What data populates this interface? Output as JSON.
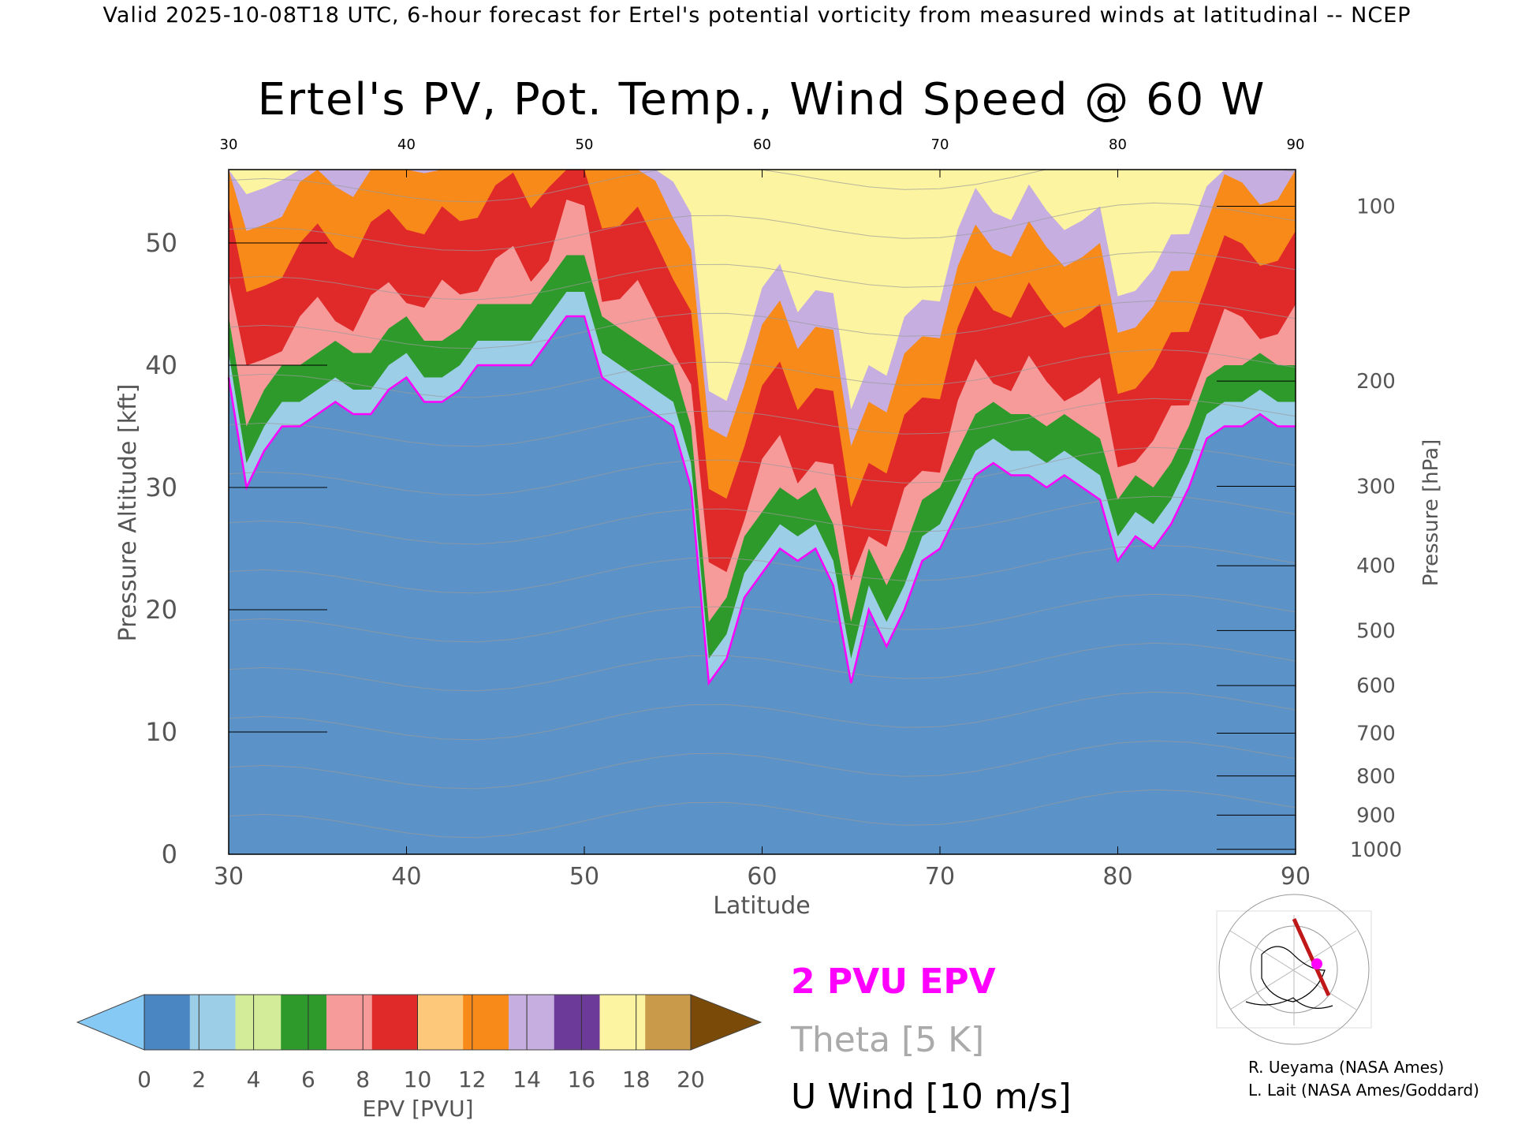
{
  "header_text": "Valid 2025-10-08T18 UTC, 6-hour forecast for Ertel's potential vorticity from measured winds at latitudinal -- NCEP",
  "chart_data": {
    "type": "heatmap",
    "title": "Ertel's PV, Pot. Temp., Wind Speed @ 60 W",
    "xlabel": "Latitude",
    "ylabel": "Pressure Altitude [kft]",
    "y2label": "Pressure [hPa]",
    "xlim": [
      30,
      90
    ],
    "ylim": [
      0,
      56
    ],
    "x_ticks": [
      "30",
      "40",
      "50",
      "60",
      "70",
      "80",
      "90"
    ],
    "y_ticks": [
      "0",
      "10",
      "20",
      "30",
      "40",
      "50"
    ],
    "top_ticks": [
      "30",
      "40",
      "50",
      "60",
      "70",
      "80",
      "90"
    ],
    "pressure_ticks": [
      {
        "label": "100",
        "kft": 53.0
      },
      {
        "label": "200",
        "kft": 38.7
      },
      {
        "label": "300",
        "kft": 30.1
      },
      {
        "label": "400",
        "kft": 23.6
      },
      {
        "label": "500",
        "kft": 18.3
      },
      {
        "label": "600",
        "kft": 13.8
      },
      {
        "label": "700",
        "kft": 9.9
      },
      {
        "label": "800",
        "kft": 6.4
      },
      {
        "label": "900",
        "kft": 3.2
      },
      {
        "label": "1000",
        "kft": 0.4
      }
    ],
    "pv2_tropopause": {
      "lat": [
        30,
        31,
        32,
        33,
        34,
        35,
        36,
        37,
        38,
        39,
        40,
        41,
        42,
        43,
        44,
        45,
        46,
        47,
        48,
        49,
        50,
        51,
        52,
        53,
        54,
        55,
        56,
        57,
        58,
        59,
        60,
        61,
        62,
        63,
        64,
        65,
        66,
        67,
        68,
        69,
        70,
        71,
        72,
        73,
        74,
        75,
        76,
        77,
        78,
        79,
        80,
        81,
        82,
        83,
        84,
        85,
        86,
        87,
        88,
        89,
        90
      ],
      "kft": [
        39,
        30,
        33,
        35,
        35,
        36,
        37,
        36,
        36,
        38,
        39,
        37,
        37,
        38,
        40,
        40,
        40,
        40,
        42,
        44,
        44,
        39,
        38,
        37,
        36,
        35,
        30,
        14,
        16,
        21,
        23,
        25,
        24,
        25,
        22,
        14,
        20,
        17,
        20,
        24,
        25,
        28,
        31,
        32,
        31,
        31,
        30,
        31,
        30,
        29,
        24,
        26,
        25,
        27,
        30,
        34,
        35,
        35,
        36,
        35,
        35
      ]
    },
    "colorbar": {
      "label": "EPV [PVU]",
      "ticks": [
        "0",
        "2",
        "4",
        "6",
        "8",
        "10",
        "12",
        "14",
        "16",
        "18",
        "20"
      ],
      "colors": [
        "#4a86c1",
        "#9dcee8",
        "#d3ec9a",
        "#2e9a2b",
        "#f79a9a",
        "#e02a2a",
        "#fdc87a",
        "#f88a1a",
        "#c6aee0",
        "#6c3a98",
        "#fcf4a0",
        "#c99a4a"
      ],
      "under_color": "#87c9f5",
      "over_color": "#7a4a08"
    },
    "legend": [
      {
        "label": "2 PVU EPV",
        "color": "#ff00ff"
      },
      {
        "label": "Theta [5 K]",
        "color": "#aaaaaa"
      },
      {
        "label": "U Wind [10 m/s]",
        "color": "#000000"
      }
    ],
    "credits": [
      "R. Ueyama (NASA Ames)",
      "L. Lait (NASA Ames/Goddard)"
    ]
  }
}
